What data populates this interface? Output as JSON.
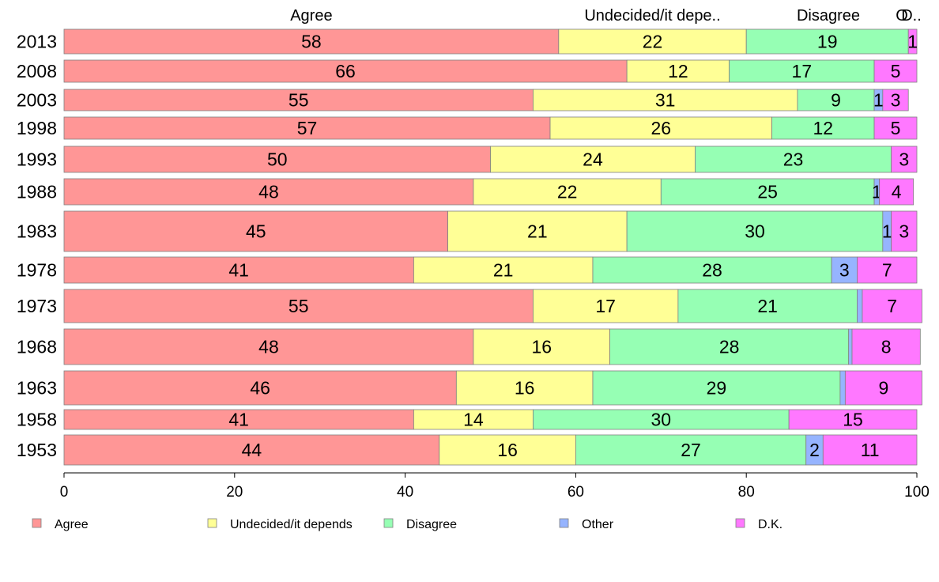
{
  "chart_data": {
    "type": "bar",
    "orientation": "horizontal",
    "stacked": true,
    "title": "",
    "xlabel": "",
    "ylabel": "",
    "xlim": [
      0,
      100
    ],
    "x_ticks": [
      0,
      20,
      40,
      60,
      80,
      100
    ],
    "top_labels": [
      "Agree",
      "Undecided/it depe..",
      "Disagree",
      "O",
      "D.."
    ],
    "legend_position": "bottom",
    "categories": [
      "2013",
      "2008",
      "2003",
      "1998",
      "1993",
      "1988",
      "1983",
      "1978",
      "1973",
      "1968",
      "1963",
      "1958",
      "1953"
    ],
    "series": [
      {
        "name": "Agree",
        "color": "#FF9696",
        "values": [
          58,
          66,
          55,
          57,
          50,
          48,
          45,
          41,
          55,
          48,
          46,
          41,
          44
        ]
      },
      {
        "name": "Undecided/it depends",
        "color": "#FFFF96",
        "values": [
          22,
          12,
          31,
          26,
          24,
          22,
          21,
          21,
          17,
          16,
          16,
          14,
          16
        ]
      },
      {
        "name": "Disagree",
        "color": "#96FFB4",
        "values": [
          19,
          17,
          9,
          12,
          23,
          25,
          30,
          28,
          21,
          28,
          29,
          30,
          27
        ]
      },
      {
        "name": "Other",
        "color": "#96B4FF",
        "values": [
          0,
          0,
          1,
          0,
          0,
          0.6,
          1,
          3,
          0.6,
          0.4,
          0.6,
          0,
          2
        ]
      },
      {
        "name": "D.K.",
        "color": "#FF78FF",
        "values": [
          1,
          5,
          3,
          5,
          3,
          4,
          3,
          7,
          7,
          8,
          9,
          15,
          11
        ]
      }
    ],
    "data_labels": [
      [
        "58",
        "22",
        "19",
        "",
        "1"
      ],
      [
        "66",
        "12",
        "17",
        "",
        "5"
      ],
      [
        "55",
        "31",
        "9",
        "1",
        "3"
      ],
      [
        "57",
        "26",
        "12",
        "",
        "5"
      ],
      [
        "50",
        "24",
        "23",
        "",
        "3"
      ],
      [
        "48",
        "22",
        "25",
        "1",
        "4"
      ],
      [
        "45",
        "21",
        "30",
        "1",
        "3"
      ],
      [
        "41",
        "21",
        "28",
        "3",
        "7"
      ],
      [
        "55",
        "17",
        "21",
        "",
        "7"
      ],
      [
        "48",
        "16",
        "28",
        "",
        "8"
      ],
      [
        "46",
        "16",
        "29",
        "",
        "9"
      ],
      [
        "41",
        "14",
        "30",
        "",
        "15"
      ],
      [
        "44",
        "16",
        "27",
        "2",
        "11"
      ]
    ]
  }
}
